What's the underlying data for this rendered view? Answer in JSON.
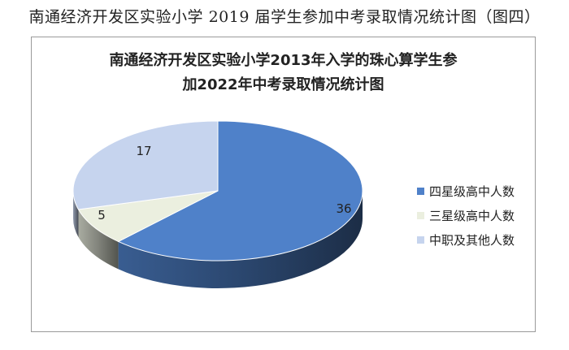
{
  "caption": "南通经济开发区实验小学 2019 届学生参加中考录取情况统计图（图四）",
  "chart_data": {
    "type": "pie",
    "style": "3d",
    "title_lines": [
      "南通经济开发区实验小学2013年入学的珠心算学生参",
      "加2022年中考录取情况统计图"
    ],
    "categories": [
      "四星级高中人数",
      "三星级高中人数",
      "中职及其他人数"
    ],
    "values": [
      36,
      5,
      17
    ],
    "data_labels": [
      "36",
      "5",
      "17"
    ],
    "colors": [
      "#4f81c9",
      "#ebefdf",
      "#c6d4ee"
    ],
    "legend_position": "right"
  }
}
